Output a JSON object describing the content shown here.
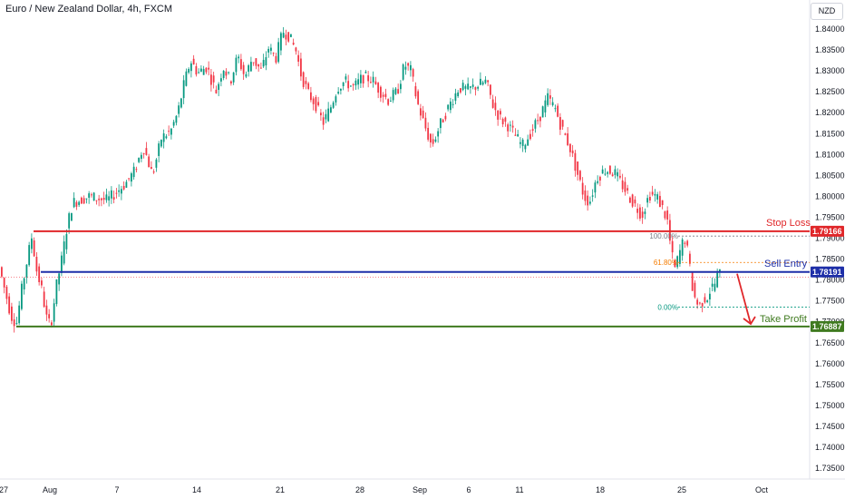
{
  "header": {
    "title": "Euro / New Zealand Dollar, 4h, FXCM",
    "currency": "NZD"
  },
  "chart_data": {
    "type": "candlestick",
    "title": "Euro / New Zealand Dollar, 4h, FXCM",
    "ylim": [
      1.732,
      1.8435
    ],
    "y_ticks": [
      "1.84000",
      "1.83500",
      "1.83000",
      "1.82500",
      "1.82000",
      "1.81500",
      "1.81000",
      "1.80500",
      "1.80000",
      "1.79500",
      "1.79000",
      "1.78500",
      "1.78000",
      "1.77500",
      "1.77000",
      "1.76500",
      "1.76000",
      "1.75500",
      "1.75000",
      "1.74500",
      "1.74000",
      "1.73500"
    ],
    "x_ticks": [
      "27",
      "Aug",
      "7",
      "14",
      "21",
      "28",
      "Sep",
      "6",
      "11",
      "18",
      "25",
      "Oct"
    ],
    "grid": false,
    "price_path": [
      [
        0,
        1.784
      ],
      [
        14,
        1.7715
      ],
      [
        20,
        1.7695
      ],
      [
        26,
        1.778
      ],
      [
        32,
        1.785
      ],
      [
        37,
        1.7905
      ],
      [
        42,
        1.7825
      ],
      [
        48,
        1.7775
      ],
      [
        54,
        1.77
      ],
      [
        58,
        1.7695
      ],
      [
        64,
        1.7785
      ],
      [
        70,
        1.785
      ],
      [
        76,
        1.793
      ],
      [
        82,
        1.7985
      ],
      [
        100,
        1.8
      ],
      [
        120,
        1.799
      ],
      [
        140,
        1.803
      ],
      [
        150,
        1.806
      ],
      [
        160,
        1.812
      ],
      [
        170,
        1.805
      ],
      [
        180,
        1.814
      ],
      [
        190,
        1.8155
      ],
      [
        198,
        1.82
      ],
      [
        205,
        1.827
      ],
      [
        212,
        1.8325
      ],
      [
        220,
        1.8295
      ],
      [
        230,
        1.831
      ],
      [
        240,
        1.825
      ],
      [
        248,
        1.831
      ],
      [
        256,
        1.8275
      ],
      [
        264,
        1.8335
      ],
      [
        272,
        1.8285
      ],
      [
        280,
        1.833
      ],
      [
        290,
        1.83
      ],
      [
        298,
        1.8355
      ],
      [
        306,
        1.833
      ],
      [
        314,
        1.8395
      ],
      [
        320,
        1.8385
      ],
      [
        328,
        1.835
      ],
      [
        334,
        1.829
      ],
      [
        342,
        1.8245
      ],
      [
        350,
        1.822
      ],
      [
        358,
        1.8175
      ],
      [
        366,
        1.821
      ],
      [
        374,
        1.826
      ],
      [
        382,
        1.8275
      ],
      [
        392,
        1.826
      ],
      [
        402,
        1.8285
      ],
      [
        412,
        1.828
      ],
      [
        420,
        1.8255
      ],
      [
        430,
        1.823
      ],
      [
        440,
        1.825
      ],
      [
        448,
        1.8315
      ],
      [
        455,
        1.83
      ],
      [
        462,
        1.8225
      ],
      [
        470,
        1.817
      ],
      [
        478,
        1.812
      ],
      [
        488,
        1.8175
      ],
      [
        498,
        1.822
      ],
      [
        508,
        1.826
      ],
      [
        518,
        1.8255
      ],
      [
        528,
        1.8265
      ],
      [
        538,
        1.8275
      ],
      [
        546,
        1.8215
      ],
      [
        554,
        1.8185
      ],
      [
        562,
        1.817
      ],
      [
        570,
        1.8145
      ],
      [
        578,
        1.812
      ],
      [
        588,
        1.8155
      ],
      [
        598,
        1.8195
      ],
      [
        606,
        1.8235
      ],
      [
        614,
        1.821
      ],
      [
        622,
        1.816
      ],
      [
        630,
        1.812
      ],
      [
        638,
        1.806
      ],
      [
        646,
        1.8
      ],
      [
        652,
        1.7985
      ],
      [
        660,
        1.8045
      ],
      [
        670,
        1.8065
      ],
      [
        680,
        1.8055
      ],
      [
        690,
        1.802
      ],
      [
        700,
        1.7985
      ],
      [
        710,
        1.7955
      ],
      [
        718,
        1.8005
      ],
      [
        726,
        1.8
      ],
      [
        732,
        1.7975
      ],
      [
        738,
        1.794
      ],
      [
        742,
        1.787
      ],
      [
        746,
        1.7825
      ],
      [
        750,
        1.7855
      ],
      [
        754,
        1.7885
      ],
      [
        758,
        1.79
      ],
      [
        762,
        1.784
      ],
      [
        766,
        1.7775
      ],
      [
        770,
        1.7745
      ],
      [
        774,
        1.774
      ],
      [
        778,
        1.7755
      ],
      [
        782,
        1.776
      ],
      [
        786,
        1.778
      ],
      [
        790,
        1.779
      ],
      [
        794,
        1.7815
      ]
    ],
    "levels": [
      {
        "name": "Stop Loss",
        "value": 1.79166,
        "value_label": "1.79166",
        "color": "#e0272a"
      },
      {
        "name": "Sell Entry",
        "value": 1.78191,
        "value_label": "1.78191",
        "color": "#1e2fa8"
      },
      {
        "name": "Take Profit",
        "value": 1.76887,
        "value_label": "1.76887",
        "color": "#3f7a1f"
      }
    ],
    "fib_levels": [
      {
        "label": "100.00%",
        "value": 1.7905
      },
      {
        "label": "61.80%",
        "value": 1.7842
      },
      {
        "label": "0.00%",
        "value": 1.7735
      }
    ],
    "reference_line": {
      "value": 1.78064
    },
    "arrow": {
      "from_value": 1.7815,
      "to_value": 1.7695
    }
  }
}
